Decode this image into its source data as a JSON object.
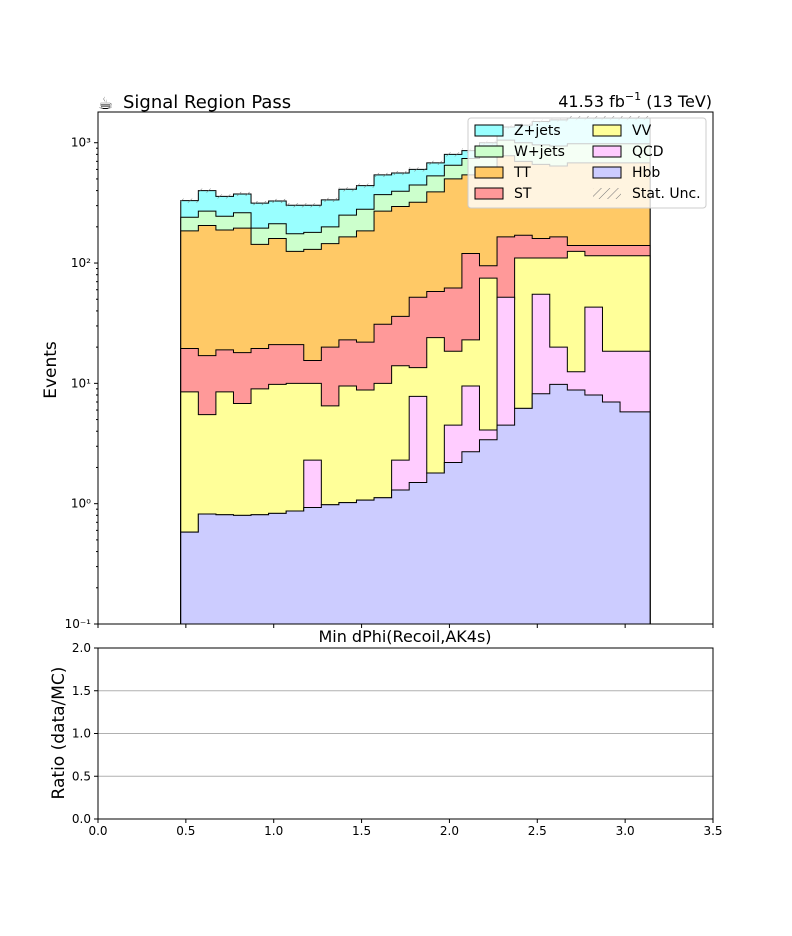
{
  "header": {
    "title_icon": "☕",
    "title": "Signal Region Pass",
    "lumi_value": "41.53 fb",
    "lumi_exp": "−1",
    "lumi_energy": " (13 TeV)"
  },
  "chart_data": [
    {
      "type": "area",
      "subtype": "stacked-step-histogram",
      "xlabel": "Min dPhi(Recoil,AK4s)",
      "ylabel": "Events",
      "yscale": "log",
      "xlim": [
        0.0,
        3.5
      ],
      "ylim": [
        0.1,
        1800
      ],
      "ytick_labels": [
        "10⁻¹",
        "10⁰",
        "10¹",
        "10²",
        "10³"
      ],
      "bin_edges": [
        0.471,
        0.571,
        0.671,
        0.771,
        0.871,
        0.971,
        1.071,
        1.171,
        1.271,
        1.371,
        1.471,
        1.571,
        1.671,
        1.771,
        1.871,
        1.971,
        2.071,
        2.171,
        2.271,
        2.371,
        2.471,
        2.571,
        2.671,
        2.771,
        2.871,
        2.971,
        3.071,
        3.142
      ],
      "legend_position": "top-right",
      "legend": [
        "Z+jets",
        "VV",
        "W+jets",
        "QCD",
        "TT",
        "Hbb",
        "ST",
        "Stat. Unc."
      ],
      "series": [
        {
          "name": "Hbb",
          "color": "#ccccff",
          "cumulative": [
            0.58,
            0.82,
            0.81,
            0.8,
            0.81,
            0.83,
            0.87,
            0.93,
            0.98,
            1.02,
            1.07,
            1.12,
            1.3,
            1.5,
            1.8,
            2.2,
            2.7,
            3.4,
            4.5,
            6.2,
            8.2,
            9.8,
            8.8,
            8.0,
            7.0,
            5.8,
            5.8
          ]
        },
        {
          "name": "QCD",
          "color": "#ffccff",
          "cumulative": [
            0.58,
            0.82,
            0.81,
            0.8,
            0.81,
            0.83,
            0.87,
            2.3,
            0.98,
            1.02,
            1.07,
            1.12,
            2.3,
            7.8,
            1.8,
            4.5,
            9.5,
            4.1,
            52.0,
            6.2,
            55.0,
            20.0,
            12.5,
            43.0,
            18.5,
            18.5,
            18.5
          ]
        },
        {
          "name": "VV",
          "color": "#ffff99",
          "cumulative": [
            8.5,
            5.5,
            8.5,
            6.8,
            9.0,
            9.8,
            10.0,
            10.0,
            6.5,
            9.5,
            8.8,
            10.0,
            14.0,
            13.5,
            24.0,
            18.5,
            23.0,
            75.0,
            50.0,
            110.0,
            110.0,
            110.0,
            125.0,
            115.0,
            115.0,
            115.0,
            115.0
          ]
        },
        {
          "name": "ST",
          "color": "#ff9999",
          "cumulative": [
            19.5,
            17.0,
            19.0,
            18.0,
            19.5,
            21.0,
            21.0,
            15.5,
            20.0,
            23.0,
            22.0,
            31.0,
            36.0,
            52.0,
            58.0,
            62.0,
            120.0,
            95.0,
            165.0,
            170.0,
            160.0,
            165.0,
            140.0,
            140.0,
            140.0,
            140.0,
            140.0
          ]
        },
        {
          "name": "TT",
          "color": "#ffc966",
          "cumulative": [
            185,
            205,
            188,
            195,
            143,
            160,
            125,
            130,
            145,
            165,
            185,
            270,
            295,
            320,
            390,
            500,
            540,
            620,
            780,
            700,
            660,
            640,
            680,
            680,
            680,
            680,
            680
          ]
        },
        {
          "name": "W+jets",
          "color": "#ccffcc",
          "cumulative": [
            240,
            270,
            245,
            262,
            195,
            212,
            175,
            180,
            200,
            250,
            280,
            370,
            395,
            445,
            530,
            650,
            740,
            900,
            1050,
            1000,
            960,
            940,
            980,
            980,
            980,
            980,
            980
          ]
        },
        {
          "name": "Z+jets",
          "color": "#99ffff",
          "cumulative": [
            330,
            400,
            358,
            375,
            315,
            328,
            302,
            302,
            335,
            410,
            440,
            540,
            560,
            600,
            680,
            800,
            860,
            1000,
            1350,
            1400,
            1500,
            1550,
            1600,
            1600,
            1600,
            1600,
            1600
          ]
        }
      ]
    },
    {
      "type": "line",
      "subtype": "ratio-panel",
      "xlabel": "",
      "ylabel": "Ratio (data/MC)",
      "xlim": [
        0.0,
        3.5
      ],
      "ylim": [
        0.0,
        2.0
      ],
      "x_ticks": [
        "0.0",
        "0.5",
        "1.0",
        "1.5",
        "2.0",
        "2.5",
        "3.0",
        "3.5"
      ],
      "y_ticks": [
        "0.0",
        "0.5",
        "1.0",
        "1.5",
        "2.0"
      ],
      "grid": "horizontal"
    }
  ]
}
